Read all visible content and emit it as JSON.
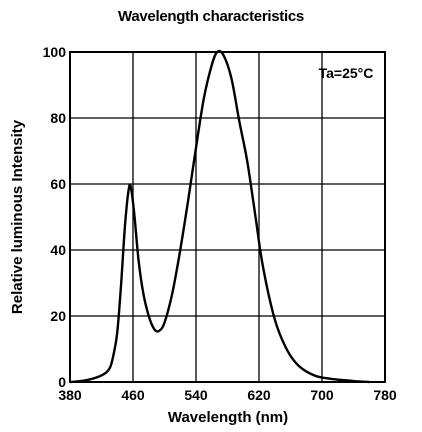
{
  "chart_data": {
    "type": "line",
    "title": "Wavelength characteristics",
    "xlabel": "Wavelength (nm)",
    "ylabel": "Relative luminous Intensity",
    "annotation": "Ta=25°C",
    "xlim": [
      380,
      780
    ],
    "ylim": [
      0,
      100
    ],
    "x_ticks": [
      380,
      460,
      540,
      620,
      700,
      780
    ],
    "x_tick_labels": [
      "380",
      "460",
      "540",
      "620",
      "700",
      "780"
    ],
    "y_ticks": [
      0,
      20,
      40,
      60,
      80,
      100
    ],
    "y_tick_labels": [
      "0",
      "20",
      "40",
      "60",
      "80",
      "100"
    ],
    "grid": true,
    "series": [
      {
        "color": "#000000",
        "points": [
          [
            380,
            0
          ],
          [
            400,
            0.5
          ],
          [
            420,
            2
          ],
          [
            430,
            4
          ],
          [
            435,
            8
          ],
          [
            440,
            15
          ],
          [
            445,
            30
          ],
          [
            450,
            48
          ],
          [
            455,
            59
          ],
          [
            458,
            58
          ],
          [
            462,
            50
          ],
          [
            467,
            37
          ],
          [
            473,
            27
          ],
          [
            480,
            20
          ],
          [
            487,
            16
          ],
          [
            493,
            15.5
          ],
          [
            500,
            18
          ],
          [
            510,
            27
          ],
          [
            520,
            40
          ],
          [
            530,
            55
          ],
          [
            540,
            71
          ],
          [
            550,
            86
          ],
          [
            560,
            96
          ],
          [
            567,
            100
          ],
          [
            575,
            99
          ],
          [
            585,
            92
          ],
          [
            595,
            79
          ],
          [
            605,
            67
          ],
          [
            615,
            51
          ],
          [
            625,
            35
          ],
          [
            640,
            19
          ],
          [
            655,
            10
          ],
          [
            670,
            5
          ],
          [
            690,
            2
          ],
          [
            710,
            1
          ],
          [
            740,
            0.3
          ],
          [
            760,
            0
          ]
        ]
      }
    ]
  }
}
